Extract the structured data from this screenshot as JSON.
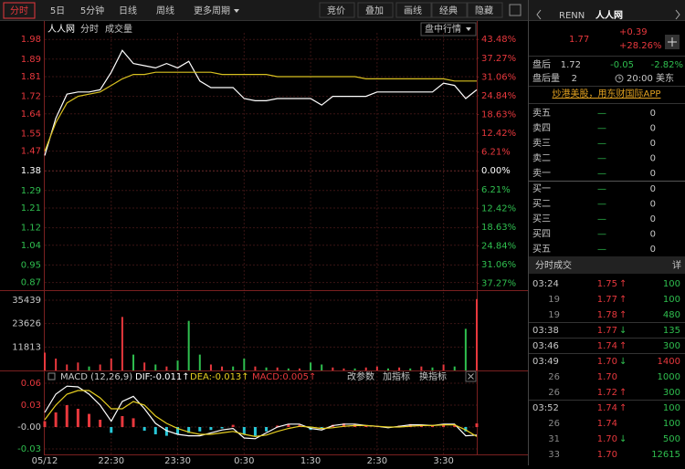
{
  "colors": {
    "up": "#e8383d",
    "down": "#2fbf4f",
    "text": "#c8c8c8",
    "accent": "#e0a020"
  },
  "toolbar": {
    "tabs": [
      "分时",
      "5日",
      "5分钟",
      "日线",
      "周线",
      "更多周期"
    ],
    "tools": [
      "竞价",
      "叠加",
      "画线",
      "经典",
      "隐藏"
    ]
  },
  "chart_header": {
    "name": "人人网",
    "mode": "分时",
    "indicator": "成交量",
    "button": "盘中行情"
  },
  "macd_header": {
    "title": "MACD (12,26,9)",
    "buttons": [
      "改参数",
      "加指标",
      "换指标"
    ]
  },
  "chart_data": [
    {
      "type": "line",
      "categories": [
        "05/12",
        null,
        null,
        null,
        null,
        null,
        "22:30",
        null,
        null,
        null,
        null,
        null,
        "23:30",
        null,
        null,
        null,
        null,
        null,
        "0:30",
        null,
        null,
        null,
        null,
        null,
        "1:30",
        null,
        null,
        null,
        null,
        null,
        "2:30",
        null,
        null,
        null,
        null,
        null,
        "3:30",
        null,
        null,
        null
      ],
      "series": [
        {
          "color": "#ffffff",
          "values": [
            1.45,
            1.62,
            1.73,
            1.74,
            1.74,
            1.75,
            1.83,
            1.93,
            1.87,
            1.86,
            1.85,
            1.87,
            1.85,
            1.88,
            1.79,
            1.76,
            1.76,
            1.76,
            1.71,
            1.7,
            1.7,
            1.71,
            1.71,
            1.71,
            1.71,
            1.68,
            1.72,
            1.72,
            1.72,
            1.72,
            1.74,
            1.74,
            1.74,
            1.74,
            1.74,
            1.74,
            1.78,
            1.77,
            1.71,
            1.75
          ]
        },
        {
          "color": "#d8c020",
          "values": [
            1.47,
            1.6,
            1.69,
            1.72,
            1.73,
            1.74,
            1.77,
            1.8,
            1.82,
            1.82,
            1.83,
            1.83,
            1.83,
            1.83,
            1.83,
            1.83,
            1.82,
            1.82,
            1.82,
            1.82,
            1.82,
            1.81,
            1.81,
            1.81,
            1.81,
            1.81,
            1.81,
            1.81,
            1.81,
            1.8,
            1.8,
            1.8,
            1.8,
            1.8,
            1.8,
            1.8,
            1.8,
            1.79,
            1.79,
            1.79
          ]
        }
      ],
      "ylim": [
        0.835,
        2.01
      ],
      "yticks": [
        1.98,
        1.89,
        1.81,
        1.72,
        1.64,
        1.55,
        1.47,
        1.38,
        1.29,
        1.21,
        1.12,
        1.04,
        0.95,
        0.87
      ],
      "y2lim": [
        -39.49,
        45.65
      ],
      "y2ticks": [
        {
          "value": 43.48,
          "label": "43.48%"
        },
        {
          "value": 37.27,
          "label": "37.27%"
        },
        {
          "value": 31.06,
          "label": "31.06%"
        },
        {
          "value": 24.84,
          "label": "24.84%"
        },
        {
          "value": 18.63,
          "label": "18.63%"
        },
        {
          "value": 12.42,
          "label": "12.42%"
        },
        {
          "value": 6.21,
          "label": "6.21%"
        },
        {
          "value": 0,
          "label": "0.00%"
        },
        {
          "value": -6.21,
          "label": "6.21%"
        },
        {
          "value": -12.42,
          "label": "12.42%"
        },
        {
          "value": -18.63,
          "label": "18.63%"
        },
        {
          "value": -24.84,
          "label": "24.84%"
        },
        {
          "value": -31.06,
          "label": "31.06%"
        },
        {
          "value": -37.27,
          "label": "37.27%"
        }
      ],
      "grid": true
    },
    {
      "type": "bar",
      "values": [
        9000,
        6000,
        3000,
        4000,
        2000,
        3000,
        6000,
        27000,
        8000,
        4000,
        3000,
        2000,
        5000,
        25000,
        8000,
        3000,
        2000,
        2000,
        6000,
        2000,
        1500,
        1500,
        1000,
        1000,
        4000,
        3000,
        1500,
        1000,
        1000,
        1500,
        2000,
        1000,
        1500,
        1000,
        2000,
        1500,
        3000,
        2000,
        21000,
        36000
      ],
      "colors": [
        "#e8383d",
        "#e8383d",
        "#e8383d",
        "#e8383d",
        "#2fbf4f",
        "#e8383d",
        "#e8383d",
        "#e8383d",
        "#2fbf4f",
        "#e8383d",
        "#2fbf4f",
        "#e8383d",
        "#2fbf4f",
        "#2fbf4f",
        "#2fbf4f",
        "#e8383d",
        "#e8383d",
        "#2fbf4f",
        "#2fbf4f",
        "#e8383d",
        "#2fbf4f",
        "#e8383d",
        "#2fbf4f",
        "#e8383d",
        "#2fbf4f",
        "#2fbf4f",
        "#e8383d",
        "#e8383d",
        "#2fbf4f",
        "#e8383d",
        "#e8383d",
        "#2fbf4f",
        "#e8383d",
        "#2fbf4f",
        "#e8383d",
        "#2fbf4f",
        "#e8383d",
        "#2fbf4f",
        "#2fbf4f",
        "#e8383d"
      ],
      "ylim": [
        0,
        40500
      ],
      "yticks": [
        35439,
        23626,
        11813
      ]
    },
    {
      "type": "macd",
      "bars": {
        "name": "MACD:0.005↑",
        "up_color": "#e8383d",
        "down_color": "#28c8d8",
        "values": [
          0.008,
          0.02,
          0.03,
          0.025,
          0.018,
          0.01,
          -0.008,
          0.015,
          0.012,
          -0.005,
          -0.01,
          -0.012,
          -0.01,
          -0.008,
          -0.006,
          -0.004,
          -0.002,
          0.003,
          -0.01,
          -0.012,
          -0.006,
          0.002,
          0.004,
          0.003,
          -0.004,
          -0.002,
          0.003,
          0.005,
          0.004,
          0.002,
          0.001,
          -0.001,
          0.002,
          0.004,
          0.003,
          0.002,
          0.004,
          0.003,
          -0.006,
          0.005
        ]
      },
      "series": [
        {
          "name": "DIF:-0.011↑",
          "color": "#ffffff",
          "values": [
            0.02,
            0.045,
            0.056,
            0.055,
            0.045,
            0.03,
            0.008,
            0.035,
            0.042,
            0.025,
            0.005,
            -0.005,
            -0.01,
            -0.012,
            -0.012,
            -0.008,
            -0.004,
            -0.002,
            -0.015,
            -0.016,
            -0.008,
            0,
            0.004,
            0.004,
            -0.002,
            -0.004,
            0.002,
            0.004,
            0.004,
            0.002,
            0.001,
            -0.001,
            0.001,
            0.003,
            0.003,
            0.002,
            0.004,
            0.004,
            -0.012,
            -0.011
          ]
        },
        {
          "name": "DEA:-0.013↑",
          "color": "#e8d020",
          "values": [
            0.01,
            0.03,
            0.045,
            0.05,
            0.05,
            0.04,
            0.025,
            0.025,
            0.035,
            0.03,
            0.015,
            0.005,
            -0.002,
            -0.007,
            -0.01,
            -0.01,
            -0.008,
            -0.006,
            -0.01,
            -0.013,
            -0.011,
            -0.006,
            -0.002,
            0.001,
            0,
            -0.002,
            -0.001,
            0.001,
            0.002,
            0.002,
            0.001,
            0,
            0,
            0.001,
            0.002,
            0.002,
            0.003,
            0.003,
            -0.004,
            -0.013
          ]
        }
      ],
      "ylim": [
        -0.0375,
        0.0625
      ],
      "yticks": [
        0.06,
        0.03,
        {
          "value": 0,
          "label": "-0.00"
        },
        -0.03
      ]
    }
  ],
  "quote": {
    "symbol": "RENN",
    "name": "人人网",
    "price": "1.77",
    "change": "+0.39",
    "change_pct": "+28.26%",
    "after_hours": {
      "label": "盘后",
      "price": "1.72",
      "change": "-0.05",
      "change_pct": "-2.82%"
    },
    "after_volume": {
      "label": "盘后量",
      "value": "2",
      "time": "20:00 美东"
    },
    "banner": "炒港美股，用东财国际APP"
  },
  "order_book": {
    "asks": [
      {
        "label": "卖五",
        "price": "—",
        "volume": "0"
      },
      {
        "label": "卖四",
        "price": "—",
        "volume": "0"
      },
      {
        "label": "卖三",
        "price": "—",
        "volume": "0"
      },
      {
        "label": "卖二",
        "price": "—",
        "volume": "0"
      },
      {
        "label": "卖一",
        "price": "—",
        "volume": "0"
      }
    ],
    "bids": [
      {
        "label": "买一",
        "price": "—",
        "volume": "0"
      },
      {
        "label": "买二",
        "price": "—",
        "volume": "0"
      },
      {
        "label": "买三",
        "price": "—",
        "volume": "0"
      },
      {
        "label": "买四",
        "price": "—",
        "volume": "0"
      },
      {
        "label": "买五",
        "price": "—",
        "volume": "0"
      }
    ]
  },
  "trades": {
    "title": "分时成交",
    "detail": "详",
    "rows": [
      {
        "time": "03:24",
        "price": "1.75",
        "arrow": "↑",
        "volume": "100",
        "volume_color": "#2fbf4f"
      },
      {
        "time": "19",
        "price": "1.77",
        "arrow": "↑",
        "volume": "100",
        "volume_color": "#2fbf4f"
      },
      {
        "time": "19",
        "price": "1.78",
        "arrow": "↑",
        "volume": "480",
        "volume_color": "#2fbf4f"
      },
      {
        "time": "03:38",
        "price": "1.77",
        "arrow": "↓",
        "volume": "135",
        "volume_color": "#2fbf4f"
      },
      {
        "time": "03:46",
        "price": "1.74",
        "arrow": "↑",
        "volume": "300",
        "volume_color": "#2fbf4f"
      },
      {
        "time": "03:49",
        "price": "1.70",
        "arrow": "↓",
        "volume": "1400",
        "volume_color": "#e8383d"
      },
      {
        "time": "26",
        "price": "1.70",
        "volume": "1000",
        "volume_color": "#2fbf4f"
      },
      {
        "time": "26",
        "price": "1.72",
        "arrow": "↑",
        "volume": "300",
        "volume_color": "#2fbf4f"
      },
      {
        "time": "03:52",
        "price": "1.74",
        "arrow": "↑",
        "volume": "100",
        "volume_color": "#2fbf4f"
      },
      {
        "time": "26",
        "price": "1.74",
        "volume": "100",
        "volume_color": "#2fbf4f"
      },
      {
        "time": "31",
        "price": "1.70",
        "arrow": "↓",
        "volume": "500",
        "volume_color": "#2fbf4f"
      },
      {
        "time": "33",
        "price": "1.70",
        "volume": "12615",
        "volume_color": "#2fbf4f"
      }
    ]
  }
}
